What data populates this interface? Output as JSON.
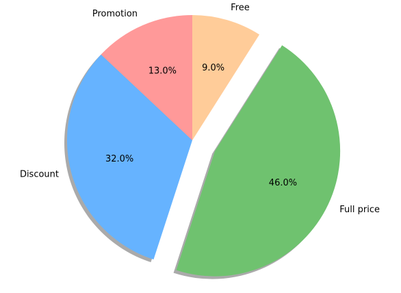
{
  "chart_data": {
    "type": "pie",
    "categories": [
      "Promotion",
      "Discount",
      "Full price",
      "Free"
    ],
    "values": [
      13,
      32,
      46,
      9
    ],
    "value_labels": [
      "13.0%",
      "32.0%",
      "46.0%",
      "9.0%"
    ],
    "colors": [
      "#ff9999",
      "#66b3ff",
      "#6fc26f",
      "#ffcc99"
    ],
    "exploded": "Full price",
    "shadow": true
  }
}
